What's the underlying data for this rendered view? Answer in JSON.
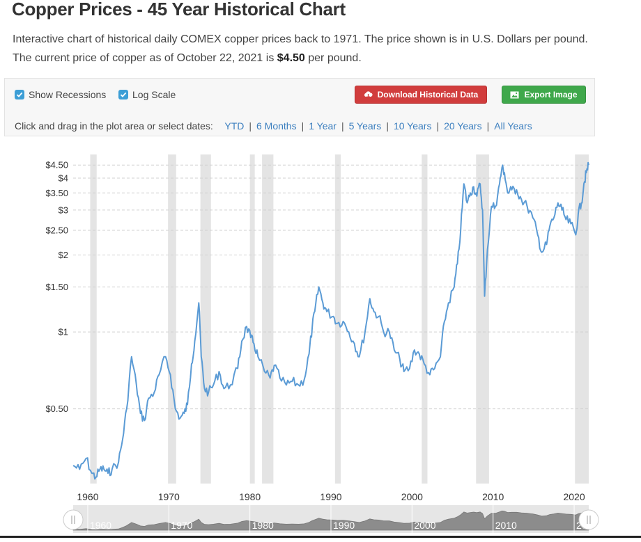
{
  "header": {
    "title": "Copper Prices - 45 Year Historical Chart",
    "desc_line1": "Interactive chart of historical daily COMEX copper prices back to 1971. The price shown is in U.S. Dollars per pound.",
    "desc_line2_prefix": "The current price of copper as of October 22, 2021 is ",
    "desc_price": "$4.50",
    "desc_line2_suffix": " per pound."
  },
  "controls": {
    "show_recessions_label": "Show Recessions",
    "show_recessions_checked": true,
    "log_scale_label": "Log Scale",
    "log_scale_checked": true,
    "download_label": "Download Historical Data",
    "export_label": "Export Image",
    "range_prompt": "Click and drag in the plot area or select dates:",
    "ranges": [
      "YTD",
      "6 Months",
      "1 Year",
      "5 Years",
      "10 Years",
      "20 Years",
      "All Years"
    ],
    "download_color": "#d13d3d",
    "export_color": "#3fa84b"
  },
  "chart_data": {
    "type": "line",
    "title": "",
    "xlabel": "",
    "ylabel": "",
    "y_scale": "log",
    "grid": "horizontal dashed",
    "line_color": "#5b9bd5",
    "recession_color": "#e4e4e4",
    "xlim": [
      1958.2,
      2021.8
    ],
    "ylim": [
      0.255,
      4.95
    ],
    "x_ticks": [
      1960,
      1970,
      1980,
      1990,
      2000,
      2010,
      2020
    ],
    "y_ticks": [
      {
        "value": 0.5,
        "label": "$0.50"
      },
      {
        "value": 1,
        "label": "$1"
      },
      {
        "value": 1.5,
        "label": "$1.50"
      },
      {
        "value": 2,
        "label": "$2"
      },
      {
        "value": 2.5,
        "label": "$2.50"
      },
      {
        "value": 3,
        "label": "$3"
      },
      {
        "value": 3.5,
        "label": "$3.50"
      },
      {
        "value": 4,
        "label": "$4"
      },
      {
        "value": 4.5,
        "label": "$4.50"
      }
    ],
    "recessions": [
      [
        1960.3,
        1961.1
      ],
      [
        1969.9,
        1970.9
      ],
      [
        1973.9,
        1975.2
      ],
      [
        1980.0,
        1980.6
      ],
      [
        1981.5,
        1982.9
      ],
      [
        1990.5,
        1991.2
      ],
      [
        2001.2,
        2001.9
      ],
      [
        2007.9,
        2009.5
      ],
      [
        2020.1,
        2021.8
      ]
    ],
    "x": [
      1958.2,
      1959.0,
      1959.8,
      1960.5,
      1961.0,
      1961.5,
      1962.0,
      1962.5,
      1963.0,
      1963.8,
      1964.3,
      1964.8,
      1965.4,
      1966.0,
      1966.5,
      1967.0,
      1967.5,
      1968.2,
      1968.8,
      1969.6,
      1970.2,
      1970.8,
      1971.4,
      1971.9,
      1972.3,
      1972.8,
      1973.2,
      1973.7,
      1974.0,
      1974.4,
      1974.9,
      1975.5,
      1976.2,
      1976.8,
      1977.6,
      1978.5,
      1979.0,
      1979.6,
      1980.1,
      1980.5,
      1981.0,
      1981.8,
      1982.5,
      1983.0,
      1983.7,
      1984.5,
      1985.2,
      1986.0,
      1986.7,
      1987.3,
      1987.7,
      1988.0,
      1988.5,
      1989.0,
      1989.5,
      1990.3,
      1990.8,
      1991.5,
      1992.2,
      1992.9,
      1993.5,
      1994.2,
      1994.8,
      1995.3,
      1995.9,
      1996.5,
      1997.2,
      1997.8,
      1998.5,
      1999.0,
      1999.7,
      2000.3,
      2000.9,
      2001.5,
      2002.2,
      2002.8,
      2003.5,
      2004.0,
      2004.5,
      2005.2,
      2005.6,
      2006.0,
      2006.4,
      2006.8,
      2007.2,
      2007.6,
      2008.0,
      2008.4,
      2008.7,
      2008.95,
      2009.3,
      2009.8,
      2010.3,
      2010.8,
      2011.1,
      2011.4,
      2011.8,
      2012.3,
      2012.9,
      2013.5,
      2014.2,
      2014.9,
      2015.5,
      2016.0,
      2016.6,
      2017.0,
      2017.5,
      2018.0,
      2018.5,
      2019.0,
      2019.6,
      2020.2,
      2020.5,
      2020.9,
      2021.2,
      2021.5,
      2021.8
    ],
    "values": [
      0.3,
      0.29,
      0.32,
      0.28,
      0.27,
      0.29,
      0.29,
      0.28,
      0.29,
      0.31,
      0.38,
      0.5,
      0.8,
      0.62,
      0.48,
      0.45,
      0.55,
      0.58,
      0.68,
      0.8,
      0.68,
      0.5,
      0.46,
      0.48,
      0.52,
      0.75,
      0.92,
      1.3,
      0.8,
      0.6,
      0.58,
      0.62,
      0.7,
      0.6,
      0.62,
      0.72,
      0.92,
      1.05,
      0.95,
      0.9,
      0.8,
      0.7,
      0.66,
      0.74,
      0.66,
      0.62,
      0.64,
      0.62,
      0.65,
      0.82,
      1.05,
      1.2,
      1.5,
      1.3,
      1.2,
      1.15,
      1.08,
      1.1,
      1.0,
      0.9,
      0.8,
      1.0,
      1.35,
      1.2,
      1.15,
      1.0,
      1.0,
      0.85,
      0.78,
      0.7,
      0.72,
      0.85,
      0.82,
      0.75,
      0.68,
      0.72,
      0.8,
      1.1,
      1.3,
      1.5,
      1.85,
      2.5,
      3.8,
      3.2,
      3.5,
      3.7,
      3.4,
      3.8,
      3.0,
      1.38,
      2.1,
      3.1,
      3.1,
      3.8,
      4.4,
      4.2,
      3.5,
      3.6,
      3.6,
      3.3,
      3.1,
      2.8,
      2.4,
      2.05,
      2.2,
      2.6,
      2.8,
      3.2,
      3.0,
      2.75,
      2.65,
      2.4,
      2.9,
      3.2,
      3.8,
      4.2,
      4.5
    ]
  },
  "navigator": {
    "labels": [
      "1960",
      "1970",
      "1980",
      "1990",
      "2000",
      "2010",
      "2020"
    ]
  }
}
